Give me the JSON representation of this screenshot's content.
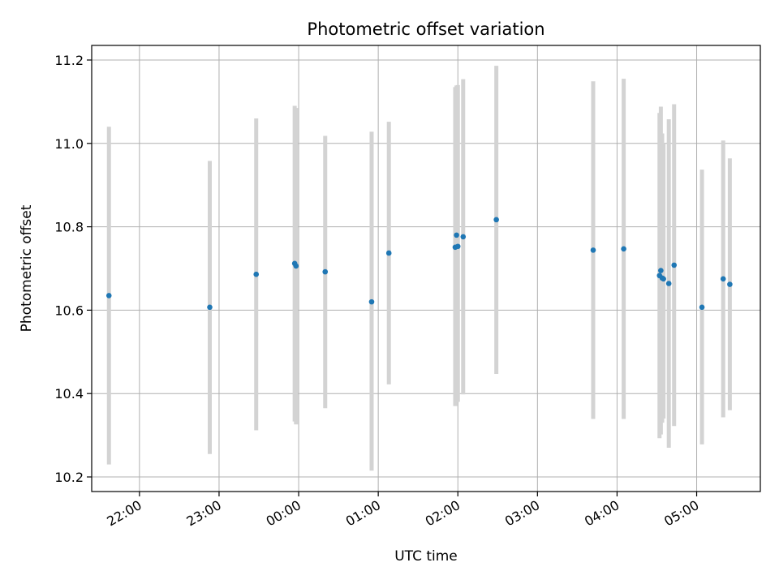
{
  "chart_data": {
    "type": "scatter",
    "title": "Photometric offset variation",
    "xlabel": "UTC time",
    "ylabel": "Photometric offset",
    "grid": true,
    "x_ticks": [
      "22:00",
      "23:00",
      "00:00",
      "01:00",
      "02:00",
      "03:00",
      "04:00",
      "05:00"
    ],
    "y_ticks": [
      "10.2",
      "10.4",
      "10.6",
      "10.8",
      "11.0",
      "11.2"
    ],
    "xlim": [
      "21:24",
      "05:48"
    ],
    "ylim": [
      10.165,
      11.235
    ],
    "colors": {
      "points": "#1f77b4",
      "errorbars": "#d3d3d3",
      "grid": "#b0b0b0"
    },
    "points": [
      {
        "t": "21:37",
        "y": 10.635,
        "lo": 10.23,
        "hi": 11.04
      },
      {
        "t": "22:53",
        "y": 10.607,
        "lo": 10.255,
        "hi": 10.958
      },
      {
        "t": "23:28",
        "y": 10.686,
        "lo": 10.312,
        "hi": 11.06
      },
      {
        "t": "23:57",
        "y": 10.712,
        "lo": 10.333,
        "hi": 11.09
      },
      {
        "t": "23:58",
        "y": 10.706,
        "lo": 10.326,
        "hi": 11.085
      },
      {
        "t": "00:20",
        "y": 10.692,
        "lo": 10.365,
        "hi": 11.018
      },
      {
        "t": "00:55",
        "y": 10.62,
        "lo": 10.215,
        "hi": 11.028
      },
      {
        "t": "01:08",
        "y": 10.737,
        "lo": 10.422,
        "hi": 11.052
      },
      {
        "t": "01:58",
        "y": 10.751,
        "lo": 10.37,
        "hi": 11.135
      },
      {
        "t": "01:59",
        "y": 10.78,
        "lo": 10.381,
        "hi": 11.139
      },
      {
        "t": "02:00",
        "y": 10.753,
        "lo": 10.38,
        "hi": 11.14
      },
      {
        "t": "02:04",
        "y": 10.776,
        "lo": 10.398,
        "hi": 11.154
      },
      {
        "t": "02:29",
        "y": 10.817,
        "lo": 10.447,
        "hi": 11.186
      },
      {
        "t": "03:42",
        "y": 10.744,
        "lo": 10.339,
        "hi": 11.149
      },
      {
        "t": "04:05",
        "y": 10.747,
        "lo": 10.339,
        "hi": 11.155
      },
      {
        "t": "04:32",
        "y": 10.683,
        "lo": 10.293,
        "hi": 11.073
      },
      {
        "t": "04:33",
        "y": 10.695,
        "lo": 10.302,
        "hi": 11.088
      },
      {
        "t": "04:34",
        "y": 10.677,
        "lo": 10.33,
        "hi": 11.024
      },
      {
        "t": "04:35",
        "y": 10.675,
        "lo": 10.34,
        "hi": 11.0
      },
      {
        "t": "04:39",
        "y": 10.664,
        "lo": 10.27,
        "hi": 11.058
      },
      {
        "t": "04:43",
        "y": 10.708,
        "lo": 10.322,
        "hi": 11.094
      },
      {
        "t": "05:04",
        "y": 10.607,
        "lo": 10.278,
        "hi": 10.937
      },
      {
        "t": "05:20",
        "y": 10.675,
        "lo": 10.343,
        "hi": 11.007
      },
      {
        "t": "05:25",
        "y": 10.662,
        "lo": 10.36,
        "hi": 10.964
      }
    ]
  }
}
